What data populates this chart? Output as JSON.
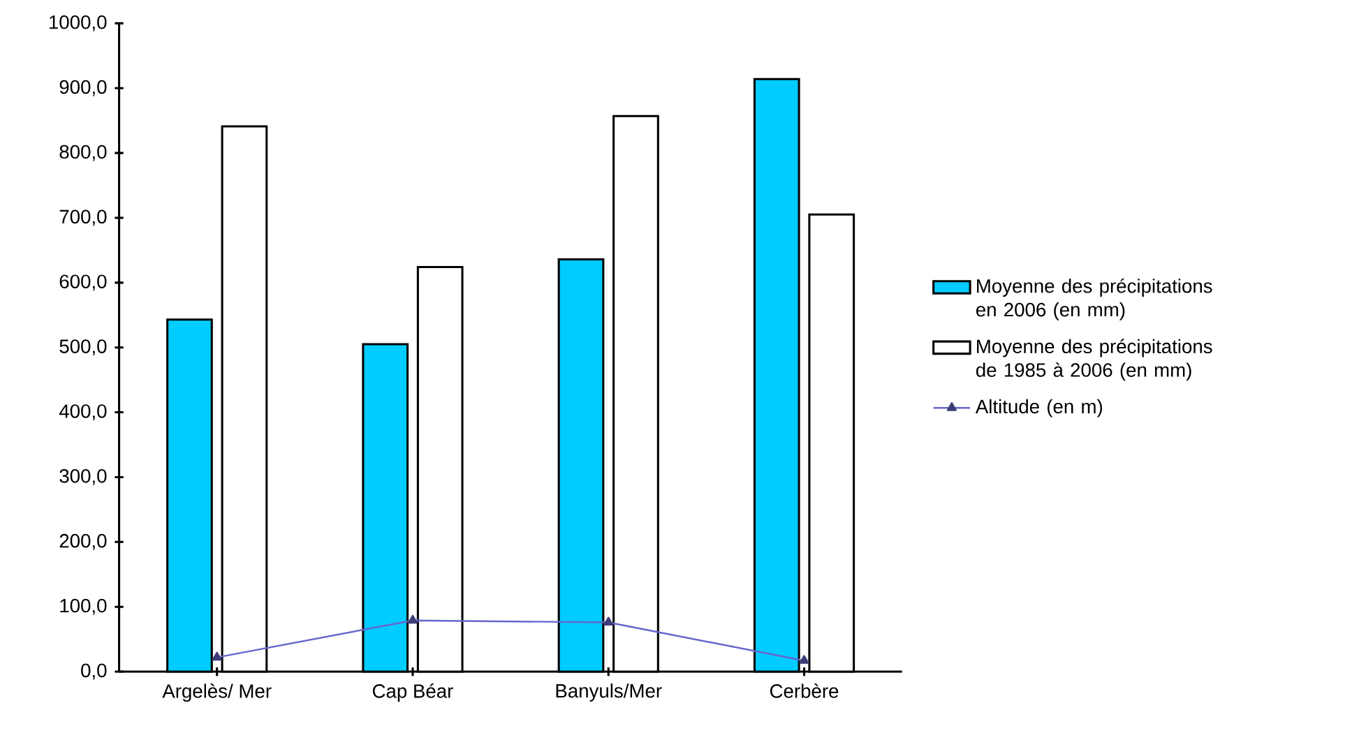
{
  "chart_data": {
    "type": "bar",
    "categories": [
      "Argelès/ Mer",
      "Cap Béar",
      "Banyuls/Mer",
      "Cerbère"
    ],
    "series": [
      {
        "name": "Moyenne des précipitations en 2006 (en mm)",
        "color": "#00ccff",
        "values": [
          543,
          505,
          636,
          914
        ]
      },
      {
        "name": "Moyenne des précipitations de 1985 à 2006 (en mm)",
        "color": "#ffffff",
        "values": [
          841,
          624,
          857,
          705
        ]
      },
      {
        "name": "Altitude (en m)",
        "type": "line",
        "color": "#6666cc",
        "marker": "triangle",
        "values": [
          22,
          79,
          76,
          17
        ]
      }
    ],
    "ylim": [
      0,
      1000
    ],
    "yticks": [
      {
        "value": 0,
        "label": "0,0"
      },
      {
        "value": 100,
        "label": "100,0"
      },
      {
        "value": 200,
        "label": "200,0"
      },
      {
        "value": 300,
        "label": "300,0"
      },
      {
        "value": 400,
        "label": "400,0"
      },
      {
        "value": 500,
        "label": "500,0"
      },
      {
        "value": 600,
        "label": "600,0"
      },
      {
        "value": 700,
        "label": "700,0"
      },
      {
        "value": 800,
        "label": "800,0"
      },
      {
        "value": 900,
        "label": "900,0"
      },
      {
        "value": 1000,
        "label": "1000,0"
      }
    ],
    "legend": "right"
  }
}
